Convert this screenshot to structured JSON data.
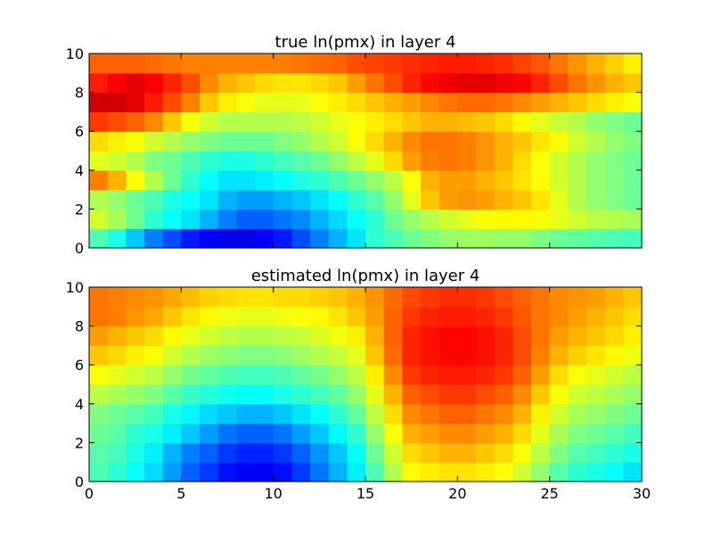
{
  "chart_data": [
    {
      "type": "heatmap",
      "title": "true ln(pmx) in layer 4",
      "xlim": [
        0,
        30
      ],
      "ylim": [
        0,
        10
      ],
      "x_ticks": [
        0,
        5,
        10,
        15,
        20,
        25,
        30
      ],
      "y_ticks": [
        0,
        2,
        4,
        6,
        8,
        10
      ],
      "x_tick_labels_shown": false,
      "colormap": "jet",
      "color_range": [
        0,
        1
      ],
      "grid": false,
      "values_bottom_to_top": [
        [
          0.45,
          0.4,
          0.32,
          0.25,
          0.2,
          0.15,
          0.12,
          0.1,
          0.1,
          0.12,
          0.15,
          0.2,
          0.25,
          0.3,
          0.35,
          0.42,
          0.45,
          0.48,
          0.5,
          0.52,
          0.53,
          0.53,
          0.52,
          0.52,
          0.5,
          0.48,
          0.47,
          0.46,
          0.45,
          0.44
        ],
        [
          0.58,
          0.54,
          0.48,
          0.42,
          0.38,
          0.35,
          0.3,
          0.25,
          0.22,
          0.22,
          0.24,
          0.26,
          0.3,
          0.34,
          0.38,
          0.42,
          0.48,
          0.52,
          0.55,
          0.58,
          0.6,
          0.62,
          0.63,
          0.63,
          0.62,
          0.6,
          0.58,
          0.56,
          0.55,
          0.54
        ],
        [
          0.55,
          0.52,
          0.48,
          0.45,
          0.4,
          0.38,
          0.35,
          0.3,
          0.28,
          0.28,
          0.3,
          0.32,
          0.35,
          0.38,
          0.42,
          0.46,
          0.52,
          0.6,
          0.68,
          0.72,
          0.73,
          0.72,
          0.7,
          0.68,
          0.65,
          0.6,
          0.55,
          0.52,
          0.5,
          0.48
        ],
        [
          0.75,
          0.7,
          0.62,
          0.55,
          0.48,
          0.42,
          0.38,
          0.35,
          0.35,
          0.36,
          0.38,
          0.4,
          0.42,
          0.45,
          0.48,
          0.52,
          0.56,
          0.62,
          0.7,
          0.72,
          0.72,
          0.7,
          0.68,
          0.65,
          0.62,
          0.58,
          0.55,
          0.52,
          0.5,
          0.48
        ],
        [
          0.6,
          0.58,
          0.55,
          0.5,
          0.48,
          0.45,
          0.42,
          0.4,
          0.4,
          0.42,
          0.44,
          0.46,
          0.48,
          0.52,
          0.56,
          0.6,
          0.66,
          0.72,
          0.75,
          0.76,
          0.75,
          0.73,
          0.7,
          0.66,
          0.62,
          0.58,
          0.55,
          0.52,
          0.5,
          0.48
        ],
        [
          0.66,
          0.64,
          0.62,
          0.58,
          0.55,
          0.52,
          0.5,
          0.48,
          0.48,
          0.48,
          0.5,
          0.52,
          0.55,
          0.58,
          0.62,
          0.66,
          0.7,
          0.74,
          0.76,
          0.76,
          0.75,
          0.73,
          0.7,
          0.68,
          0.65,
          0.62,
          0.58,
          0.55,
          0.52,
          0.5
        ],
        [
          0.82,
          0.8,
          0.78,
          0.74,
          0.68,
          0.62,
          0.58,
          0.55,
          0.55,
          0.55,
          0.55,
          0.56,
          0.58,
          0.6,
          0.62,
          0.64,
          0.66,
          0.68,
          0.7,
          0.7,
          0.69,
          0.68,
          0.66,
          0.63,
          0.6,
          0.57,
          0.55,
          0.52,
          0.5,
          0.48
        ],
        [
          0.92,
          0.92,
          0.9,
          0.85,
          0.8,
          0.75,
          0.68,
          0.64,
          0.62,
          0.6,
          0.6,
          0.6,
          0.62,
          0.64,
          0.66,
          0.68,
          0.7,
          0.72,
          0.74,
          0.76,
          0.77,
          0.77,
          0.76,
          0.74,
          0.72,
          0.7,
          0.68,
          0.66,
          0.64,
          0.62
        ],
        [
          0.85,
          0.88,
          0.9,
          0.88,
          0.84,
          0.8,
          0.74,
          0.7,
          0.68,
          0.66,
          0.65,
          0.65,
          0.66,
          0.68,
          0.72,
          0.76,
          0.8,
          0.84,
          0.87,
          0.89,
          0.9,
          0.9,
          0.89,
          0.87,
          0.84,
          0.8,
          0.76,
          0.73,
          0.7,
          0.68
        ],
        [
          0.78,
          0.78,
          0.78,
          0.77,
          0.76,
          0.75,
          0.75,
          0.75,
          0.75,
          0.75,
          0.75,
          0.76,
          0.77,
          0.78,
          0.8,
          0.81,
          0.82,
          0.83,
          0.84,
          0.85,
          0.85,
          0.84,
          0.83,
          0.81,
          0.79,
          0.76,
          0.73,
          0.7,
          0.67,
          0.64
        ]
      ]
    },
    {
      "type": "heatmap",
      "title": "estimated ln(pmx) in layer 4",
      "xlim": [
        0,
        30
      ],
      "ylim": [
        0,
        10
      ],
      "x_ticks": [
        0,
        5,
        10,
        15,
        20,
        25,
        30
      ],
      "y_ticks": [
        0,
        2,
        4,
        6,
        8,
        10
      ],
      "x_tick_labels_shown": true,
      "colormap": "jet",
      "color_range": [
        0,
        1
      ],
      "grid": false,
      "values_bottom_to_top": [
        [
          0.45,
          0.42,
          0.38,
          0.34,
          0.28,
          0.22,
          0.18,
          0.14,
          0.12,
          0.12,
          0.14,
          0.18,
          0.24,
          0.3,
          0.36,
          0.45,
          0.55,
          0.62,
          0.64,
          0.65,
          0.65,
          0.64,
          0.62,
          0.58,
          0.52,
          0.46,
          0.42,
          0.4,
          0.38,
          0.35
        ],
        [
          0.46,
          0.44,
          0.4,
          0.36,
          0.3,
          0.25,
          0.22,
          0.18,
          0.16,
          0.16,
          0.18,
          0.22,
          0.27,
          0.32,
          0.38,
          0.48,
          0.58,
          0.66,
          0.68,
          0.7,
          0.7,
          0.68,
          0.66,
          0.62,
          0.56,
          0.5,
          0.46,
          0.44,
          0.42,
          0.4
        ],
        [
          0.48,
          0.46,
          0.42,
          0.4,
          0.36,
          0.32,
          0.28,
          0.24,
          0.22,
          0.22,
          0.24,
          0.28,
          0.32,
          0.37,
          0.42,
          0.52,
          0.62,
          0.7,
          0.72,
          0.74,
          0.74,
          0.72,
          0.7,
          0.66,
          0.6,
          0.54,
          0.5,
          0.48,
          0.46,
          0.44
        ],
        [
          0.5,
          0.48,
          0.46,
          0.44,
          0.4,
          0.37,
          0.34,
          0.32,
          0.3,
          0.3,
          0.32,
          0.35,
          0.38,
          0.42,
          0.47,
          0.56,
          0.66,
          0.74,
          0.76,
          0.78,
          0.78,
          0.76,
          0.74,
          0.7,
          0.64,
          0.58,
          0.54,
          0.52,
          0.5,
          0.48
        ],
        [
          0.56,
          0.54,
          0.52,
          0.5,
          0.46,
          0.43,
          0.41,
          0.39,
          0.38,
          0.38,
          0.4,
          0.42,
          0.44,
          0.47,
          0.52,
          0.6,
          0.7,
          0.78,
          0.8,
          0.82,
          0.82,
          0.8,
          0.78,
          0.74,
          0.68,
          0.62,
          0.58,
          0.56,
          0.54,
          0.52
        ],
        [
          0.62,
          0.6,
          0.58,
          0.56,
          0.52,
          0.49,
          0.47,
          0.45,
          0.44,
          0.44,
          0.45,
          0.47,
          0.49,
          0.52,
          0.56,
          0.64,
          0.74,
          0.82,
          0.84,
          0.85,
          0.85,
          0.84,
          0.82,
          0.78,
          0.72,
          0.66,
          0.62,
          0.6,
          0.58,
          0.56
        ],
        [
          0.68,
          0.66,
          0.64,
          0.62,
          0.58,
          0.55,
          0.53,
          0.51,
          0.5,
          0.5,
          0.51,
          0.53,
          0.55,
          0.57,
          0.6,
          0.68,
          0.77,
          0.84,
          0.86,
          0.87,
          0.87,
          0.86,
          0.84,
          0.8,
          0.75,
          0.7,
          0.67,
          0.65,
          0.63,
          0.61
        ],
        [
          0.72,
          0.7,
          0.68,
          0.66,
          0.63,
          0.6,
          0.58,
          0.56,
          0.55,
          0.55,
          0.56,
          0.57,
          0.59,
          0.61,
          0.64,
          0.7,
          0.78,
          0.84,
          0.86,
          0.87,
          0.87,
          0.86,
          0.84,
          0.8,
          0.76,
          0.72,
          0.7,
          0.68,
          0.66,
          0.64
        ],
        [
          0.76,
          0.75,
          0.73,
          0.71,
          0.68,
          0.65,
          0.63,
          0.61,
          0.6,
          0.6,
          0.61,
          0.62,
          0.63,
          0.65,
          0.68,
          0.72,
          0.78,
          0.82,
          0.84,
          0.85,
          0.85,
          0.84,
          0.82,
          0.79,
          0.76,
          0.74,
          0.72,
          0.7,
          0.68,
          0.66
        ],
        [
          0.76,
          0.75,
          0.74,
          0.73,
          0.71,
          0.69,
          0.67,
          0.66,
          0.65,
          0.65,
          0.66,
          0.66,
          0.67,
          0.68,
          0.7,
          0.73,
          0.77,
          0.8,
          0.82,
          0.83,
          0.83,
          0.82,
          0.8,
          0.78,
          0.76,
          0.74,
          0.73,
          0.72,
          0.7,
          0.68
        ]
      ]
    }
  ]
}
